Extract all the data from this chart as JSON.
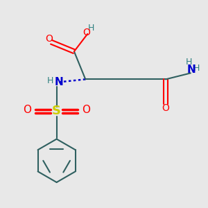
{
  "bg_color": "#e8e8e8",
  "atom_colors": {
    "O": "#ff0000",
    "N": "#0000cd",
    "S": "#cccc00",
    "C": "#2f6060",
    "H": "#2f8080"
  },
  "bond_color": "#2f6060",
  "lw": 1.5,
  "lw_double": 2.5
}
